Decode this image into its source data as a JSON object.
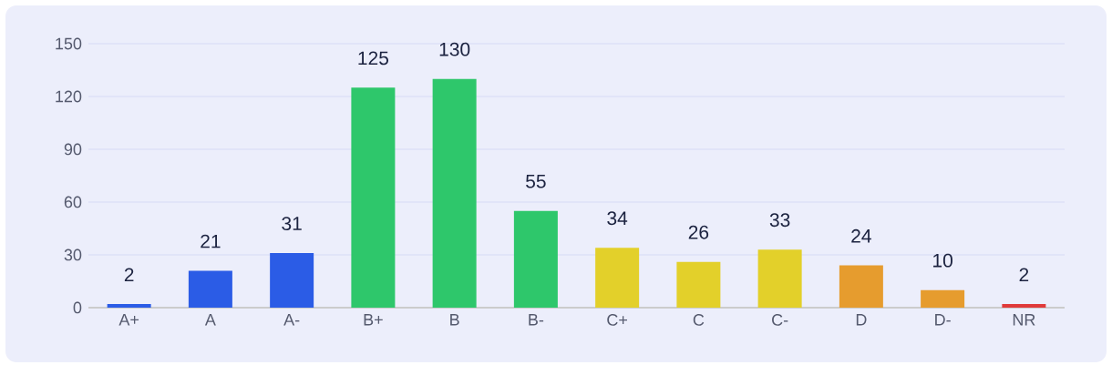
{
  "chart_data": {
    "type": "bar",
    "categories": [
      "A+",
      "A",
      "A-",
      "B+",
      "B",
      "B-",
      "C+",
      "C",
      "C-",
      "D",
      "D-",
      "NR"
    ],
    "values": [
      2,
      21,
      31,
      125,
      130,
      55,
      34,
      26,
      33,
      24,
      10,
      2
    ],
    "colors": [
      "#2b5ce6",
      "#2b5ce6",
      "#2b5ce6",
      "#2ec76b",
      "#2ec76b",
      "#2ec76b",
      "#e3d02a",
      "#e3d02a",
      "#e3d02a",
      "#e69c2e",
      "#e69c2e",
      "#e03a3a"
    ],
    "ylim": [
      0,
      150
    ],
    "yticks": [
      0,
      30,
      60,
      90,
      120,
      150
    ],
    "grid": "y",
    "data_labels": true
  }
}
